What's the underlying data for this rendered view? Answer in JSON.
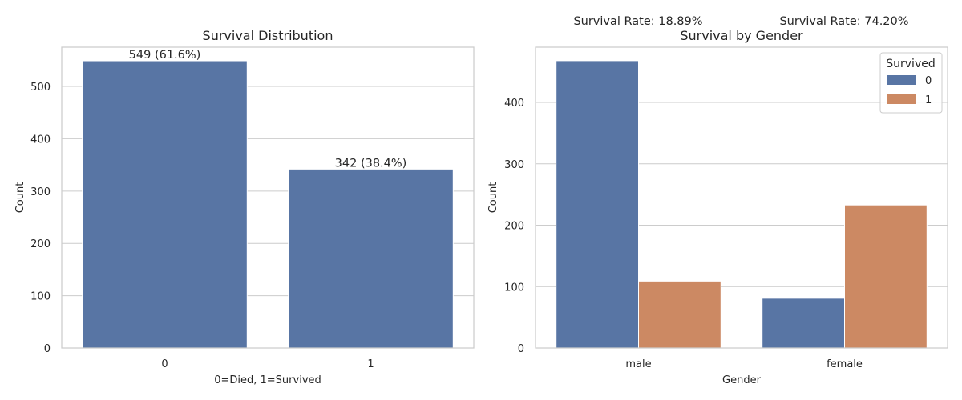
{
  "chart_data": [
    {
      "type": "bar",
      "title": "Survival Distribution",
      "xlabel": "0=Died, 1=Survived",
      "ylabel": "Count",
      "categories": [
        "0",
        "1"
      ],
      "values": [
        549,
        342
      ],
      "bar_labels": [
        "549 (61.6%)",
        "342 (38.4%)"
      ],
      "color": "#5875a4",
      "ylim": [
        0,
        575
      ],
      "yticks": [
        0,
        100,
        200,
        300,
        400,
        500
      ],
      "grid": "y"
    },
    {
      "type": "bar",
      "title": "Survival by Gender",
      "xlabel": "Gender",
      "ylabel": "Count",
      "categories": [
        "male",
        "female"
      ],
      "series": [
        {
          "name": "0",
          "values": [
            468,
            81
          ],
          "color": "#5875a4"
        },
        {
          "name": "1",
          "values": [
            109,
            233
          ],
          "color": "#cc8963"
        }
      ],
      "legend_title": "Survived",
      "legend_position": "top-right",
      "annotations": [
        "Survival Rate: 18.89%",
        "Survival Rate: 74.20%"
      ],
      "ylim": [
        0,
        490
      ],
      "yticks": [
        0,
        100,
        200,
        300,
        400
      ],
      "grid": "y"
    }
  ]
}
